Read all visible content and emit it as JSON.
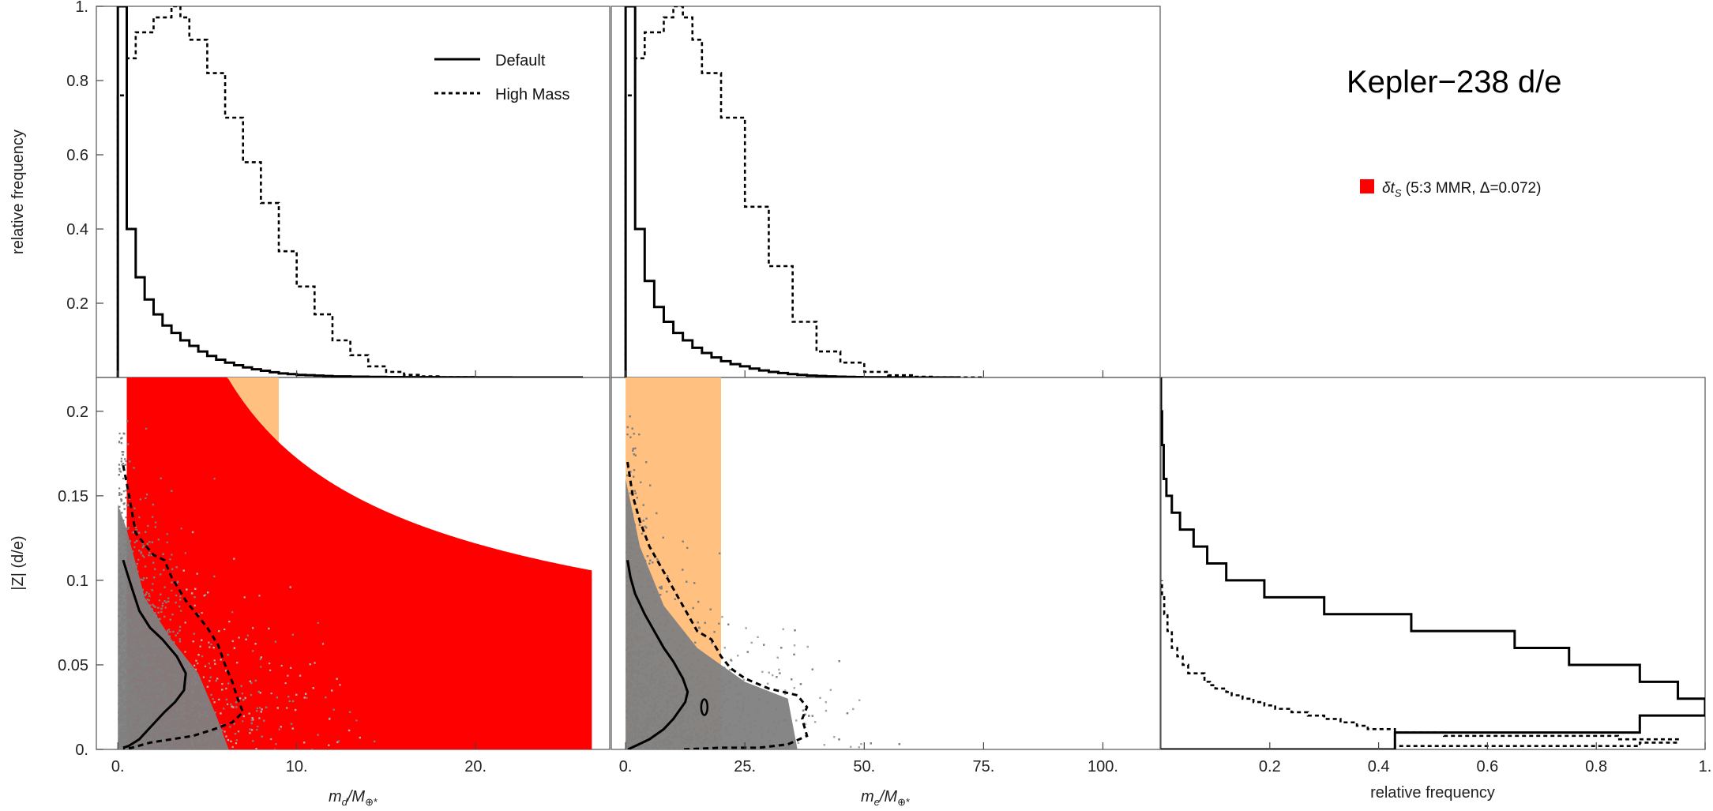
{
  "title": "Kepler−238 d/e",
  "legend": {
    "default_label": "Default",
    "high_mass_label": "High Mass",
    "stability_symbol": "δt",
    "stability_subscript": "S",
    "stability_text": " (5:3 MMR, Δ=0.072)",
    "stability_color": "#ff0000",
    "resonance_color": "#ffc080"
  },
  "labels": {
    "ylabel_top": "relative frequency",
    "ylabel_bottom": "|Z| (d/e)",
    "xlabel_md_main": "m",
    "xlabel_md_sub": "d",
    "xlabel_me_main": "m",
    "xlabel_me_sub": "e",
    "xlabel_mass_suffix": "/M",
    "xlabel_mass_sub": "⊕*",
    "xlabel_right": "relative frequency"
  },
  "chart_data": [
    {
      "type": "histogram",
      "panel": "top-left",
      "xlim": [
        -1.2,
        27.5
      ],
      "ylim": [
        0,
        1.0
      ],
      "ytick_labels": [
        "0.2",
        "0.4",
        "0.6",
        "0.8",
        "1."
      ],
      "ytick_values": [
        0.2,
        0.4,
        0.6,
        0.8,
        1.0
      ],
      "series": [
        {
          "name": "Default",
          "style": "solid",
          "edges": [
            0,
            0.5,
            1,
            1.5,
            2,
            2.5,
            3,
            3.5,
            4,
            4.5,
            5,
            5.5,
            6,
            6.5,
            7,
            7.5,
            8,
            8.5,
            9,
            9.5,
            10,
            10.5,
            11,
            11.5,
            12,
            13,
            14,
            15,
            16,
            18,
            20,
            22,
            24,
            26
          ],
          "heights": [
            1.0,
            0.4,
            0.27,
            0.21,
            0.17,
            0.14,
            0.12,
            0.1,
            0.085,
            0.07,
            0.058,
            0.048,
            0.04,
            0.033,
            0.027,
            0.022,
            0.018,
            0.014,
            0.011,
            0.009,
            0.007,
            0.006,
            0.005,
            0.004,
            0.003,
            0.002,
            0.0015,
            0.001,
            0.0008,
            0.0005,
            0.0003,
            0.0001,
            5e-05
          ]
        },
        {
          "name": "High Mass",
          "style": "dashed",
          "edges": [
            0,
            0.5,
            1,
            2,
            3,
            3.5,
            4,
            5,
            6,
            7,
            8,
            9,
            10,
            11,
            12,
            13,
            14,
            15,
            16,
            17,
            18,
            20,
            22
          ],
          "heights": [
            0.76,
            0.86,
            0.93,
            0.97,
            1.0,
            0.97,
            0.91,
            0.82,
            0.7,
            0.58,
            0.47,
            0.34,
            0.245,
            0.17,
            0.1,
            0.06,
            0.03,
            0.015,
            0.007,
            0.003,
            0.001,
            0.0003
          ]
        }
      ]
    },
    {
      "type": "histogram",
      "panel": "top-middle",
      "xlim": [
        -3,
        112
      ],
      "ylim": [
        0,
        1.0
      ],
      "series": [
        {
          "name": "Default",
          "style": "solid",
          "edges": [
            0,
            2,
            4,
            6,
            8,
            10,
            12,
            14,
            16,
            18,
            20,
            22,
            24,
            26,
            28,
            30,
            32,
            34,
            36,
            38,
            40,
            42,
            44,
            46,
            48,
            50,
            55,
            60,
            65,
            70
          ],
          "heights": [
            1.0,
            0.4,
            0.26,
            0.19,
            0.15,
            0.12,
            0.1,
            0.08,
            0.066,
            0.054,
            0.044,
            0.036,
            0.03,
            0.024,
            0.019,
            0.015,
            0.012,
            0.009,
            0.007,
            0.005,
            0.004,
            0.003,
            0.0022,
            0.0015,
            0.001,
            0.0005,
            0.0002,
            0.0001,
            5e-05
          ]
        },
        {
          "name": "High Mass",
          "style": "dashed",
          "edges": [
            0,
            2,
            4,
            8,
            10,
            12,
            14,
            16,
            20,
            25,
            30,
            35,
            40,
            45,
            50,
            55,
            60,
            65,
            70,
            75
          ],
          "heights": [
            0.76,
            0.86,
            0.93,
            0.97,
            1.0,
            0.97,
            0.91,
            0.82,
            0.7,
            0.46,
            0.3,
            0.15,
            0.07,
            0.04,
            0.015,
            0.006,
            0.002,
            0.0008,
            0.0002
          ]
        }
      ]
    },
    {
      "type": "scatter",
      "panel": "bottom-left",
      "xlim": [
        -1.2,
        27.5
      ],
      "ylim": [
        0,
        0.22
      ],
      "xtick_labels": [
        "0.",
        "10.",
        "20."
      ],
      "xtick_values": [
        0,
        10,
        20
      ],
      "ytick_labels": [
        "0.",
        "0.05",
        "0.1",
        "0.15",
        "0.2"
      ],
      "ytick_values": [
        0,
        0.05,
        0.1,
        0.15,
        0.2
      ],
      "resonance_band": {
        "x": [
          0.5,
          9
        ],
        "upper_curve_k": 0.314
      },
      "stability_region": {
        "x": [
          0.5,
          26.5
        ],
        "upper_curve_k": 0.545,
        "lower_curve_k": 0.0
      },
      "contour_solid": [
        [
          0.3,
          0.112
        ],
        [
          0.5,
          0.105
        ],
        [
          0.8,
          0.095
        ],
        [
          1.2,
          0.082
        ],
        [
          1.8,
          0.072
        ],
        [
          2.5,
          0.065
        ],
        [
          3.3,
          0.055
        ],
        [
          3.8,
          0.045
        ],
        [
          3.7,
          0.035
        ],
        [
          3.2,
          0.028
        ],
        [
          2.6,
          0.022
        ],
        [
          1.9,
          0.014
        ],
        [
          1.2,
          0.006
        ],
        [
          0.6,
          0.002
        ],
        [
          0.3,
          0.001
        ]
      ],
      "contour_dashed": [
        [
          0.3,
          0.168
        ],
        [
          0.6,
          0.152
        ],
        [
          1.0,
          0.128
        ],
        [
          1.6,
          0.12
        ],
        [
          2.0,
          0.115
        ],
        [
          2.6,
          0.112
        ],
        [
          3.0,
          0.102
        ],
        [
          3.8,
          0.088
        ],
        [
          4.4,
          0.08
        ],
        [
          5.0,
          0.072
        ],
        [
          5.6,
          0.062
        ],
        [
          6.0,
          0.05
        ],
        [
          6.4,
          0.04
        ],
        [
          6.7,
          0.03
        ],
        [
          7.0,
          0.022
        ],
        [
          6.4,
          0.016
        ],
        [
          5.4,
          0.012
        ],
        [
          4.2,
          0.008
        ],
        [
          3.0,
          0.006
        ],
        [
          1.8,
          0.004
        ],
        [
          0.8,
          0.001
        ],
        [
          0.3,
          0.0
        ]
      ]
    },
    {
      "type": "scatter",
      "panel": "bottom-middle",
      "xlim": [
        -3,
        112
      ],
      "ylim": [
        0,
        0.22
      ],
      "xtick_labels": [
        "0.",
        "25.",
        "50.",
        "75.",
        "100."
      ],
      "xtick_values": [
        0,
        25,
        50,
        75,
        100
      ],
      "resonance_band": {
        "x": [
          0,
          20
        ]
      },
      "contour_solid": [
        [
          0.4,
          0.112
        ],
        [
          1.0,
          0.102
        ],
        [
          2.0,
          0.092
        ],
        [
          4.0,
          0.08
        ],
        [
          6.0,
          0.07
        ],
        [
          8.0,
          0.06
        ],
        [
          10.0,
          0.052
        ],
        [
          12.0,
          0.042
        ],
        [
          13.0,
          0.034
        ],
        [
          12.5,
          0.028
        ],
        [
          11.0,
          0.022
        ],
        [
          10.0,
          0.018
        ],
        [
          8.0,
          0.012
        ],
        [
          5.0,
          0.006
        ],
        [
          2.0,
          0.002
        ],
        [
          0.5,
          0.0
        ]
      ],
      "contour_dashed": [
        [
          0.4,
          0.17
        ],
        [
          1.5,
          0.15
        ],
        [
          3.0,
          0.135
        ],
        [
          5.0,
          0.12
        ],
        [
          7.0,
          0.11
        ],
        [
          9.0,
          0.1
        ],
        [
          11.0,
          0.09
        ],
        [
          13.0,
          0.08
        ],
        [
          15.0,
          0.07
        ],
        [
          18.0,
          0.065
        ],
        [
          20.0,
          0.055
        ],
        [
          22.0,
          0.048
        ],
        [
          25.0,
          0.042
        ],
        [
          30.0,
          0.036
        ],
        [
          36.0,
          0.032
        ],
        [
          38.0,
          0.025
        ],
        [
          37.0,
          0.018
        ],
        [
          38.0,
          0.008
        ],
        [
          34.0,
          0.003
        ],
        [
          28.0,
          0.001
        ],
        [
          20.0,
          0.001
        ],
        [
          12.0,
          0.0
        ]
      ]
    },
    {
      "type": "histogram",
      "orientation": "horizontal",
      "panel": "bottom-right",
      "xlim": [
        0,
        1.0
      ],
      "ylim": [
        0,
        0.22
      ],
      "xtick_labels": [
        "0.2",
        "0.4",
        "0.6",
        "0.8",
        "1."
      ],
      "xtick_values": [
        0.2,
        0.4,
        0.6,
        0.8,
        1.0
      ],
      "series": [
        {
          "name": "Default",
          "style": "solid",
          "edges": [
            0,
            0.01,
            0.02,
            0.03,
            0.04,
            0.05,
            0.06,
            0.07,
            0.08,
            0.09,
            0.1,
            0.11,
            0.12,
            0.13,
            0.14,
            0.15,
            0.16,
            0.18,
            0.2,
            0.22
          ],
          "heights": [
            0.43,
            0.88,
            1.0,
            0.95,
            0.88,
            0.75,
            0.65,
            0.46,
            0.3,
            0.19,
            0.12,
            0.085,
            0.06,
            0.035,
            0.02,
            0.01,
            0.005,
            0.002,
            0.0
          ]
        },
        {
          "name": "High Mass",
          "style": "dashed",
          "edges": [
            0,
            0.002,
            0.004,
            0.006,
            0.008,
            0.01,
            0.012,
            0.014,
            0.016,
            0.018,
            0.02,
            0.022,
            0.024,
            0.026,
            0.028,
            0.03,
            0.032,
            0.034,
            0.036,
            0.038,
            0.04,
            0.045,
            0.05,
            0.055,
            0.06,
            0.07,
            0.08,
            0.09,
            0.1
          ],
          "heights": [
            0.43,
            0.88,
            0.95,
            0.84,
            0.52,
            0.43,
            0.38,
            0.36,
            0.33,
            0.3,
            0.27,
            0.24,
            0.21,
            0.19,
            0.17,
            0.15,
            0.13,
            0.12,
            0.1,
            0.09,
            0.08,
            0.05,
            0.04,
            0.03,
            0.02,
            0.012,
            0.006,
            0.002
          ]
        }
      ]
    }
  ]
}
